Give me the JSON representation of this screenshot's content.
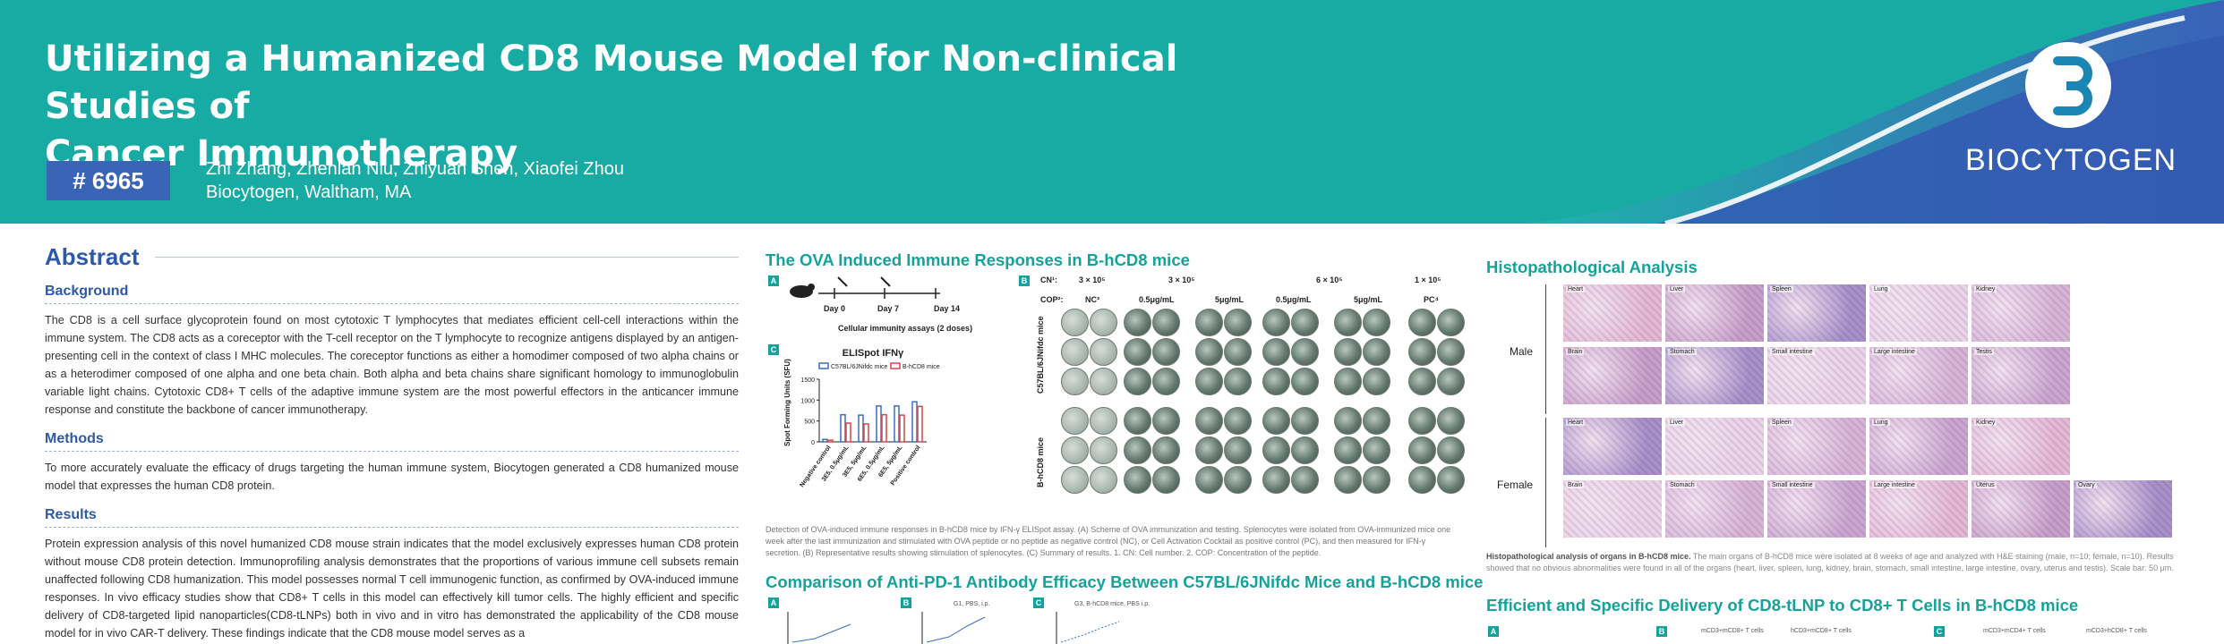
{
  "header": {
    "title_line1": "Utilizing a Humanized CD8 Mouse Model for Non-clinical Studies of",
    "title_line2": "Cancer Immunotherapy",
    "poster_number": "# 6965",
    "authors": "Zhi Zhang, Zhenlan Niu, Zhiyuan Shen, Xiaofei Zhou",
    "affiliation": "Biocytogen, Waltham, MA",
    "logo_text": "BIOCYTOGEN"
  },
  "abstract": {
    "heading": "Abstract",
    "background_heading": "Background",
    "background_text": "The CD8 is a cell surface glycoprotein found on most cytotoxic T lymphocytes that mediates efficient cell-cell interactions within the immune system. The CD8 acts as a coreceptor with the T-cell receptor on the T lymphocyte to recognize antigens displayed by an antigen-presenting cell in the context of class I MHC molecules. The coreceptor functions as either a homodimer composed of two alpha chains or as a heterodimer composed of one alpha and one beta chain. Both alpha and beta chains share significant homology to immunoglobulin variable light chains. Cytotoxic CD8+ T cells of the adaptive immune system are the most powerful effectors in the anticancer immune response and constitute the backbone of cancer immunotherapy.",
    "methods_heading": "Methods",
    "methods_text": "To more accurately evaluate the efficacy of drugs targeting the human immune system, Biocytogen generated a CD8 humanized mouse model that expresses the human CD8 protein.",
    "results_heading": "Results",
    "results_text": "Protein expression analysis of this novel humanized CD8 mouse strain indicates that the model exclusively expresses human CD8 protein without mouse CD8 protein detection. Immunoprofiling analysis demonstrates that the proportions of various immune cell subsets remain unaffected following CD8 humanization. This model possesses normal T cell immunogenic function, as confirmed by OVA-induced immune responses. In vivo efficacy studies show that CD8+ T cells in this model can effectively kill tumor cells. The highly efficient and specific delivery of CD8-targeted lipid nanoparticles(CD8-tLNPs) both in vivo and in vitro has demonstrated the applicability of the CD8 mouse model for in vivo CAR-T delivery. These findings indicate that the CD8 mouse model serves as a"
  },
  "ova": {
    "title": "The OVA Induced Immune Responses in B-hCD8 mice",
    "day0": "Day 0",
    "day7": "Day 7",
    "day14": "Day 14",
    "assay_label": "Cellular immunity assays (2 doses)",
    "cn_label": "CN¹:",
    "cop_label": "COP²:",
    "cn_values": [
      "3 × 10⁵",
      "3 × 10⁵",
      "6 × 10⁵",
      "1 × 10⁵"
    ],
    "cop_values": [
      "NC³",
      "0.5μg/mL",
      "5μg/mL",
      "0.5μg/mL",
      "5μg/mL",
      "PC⁴"
    ],
    "row1_label": "C57BL/6JNifdc mice",
    "row2_label": "B-hCD8 mice",
    "caption": "Detection of OVA-induced immune responses in B-hCD8 mice by IFN-γ ELISpot assay. (A) Scheme of OVA immunization and testing. Splenocytes were isolated from OVA-immunized mice one week after the last immunization and stimulated with OVA peptide or no peptide as negative control (NC), or Cell Activation Cocktail as positive control (PC), and then measured for IFN-γ secretion. (B) Representative results showing stimulation of splenocytes. (C) Summary of results. 1. CN: Cell number. 2. COP: Concentration of the peptide."
  },
  "chart_data": {
    "type": "bar",
    "title": "ELISpot IFNγ",
    "ylabel": "Spot Forming Units (SFU)",
    "ylim": [
      0,
      1500
    ],
    "yticks": [
      0,
      500,
      1000,
      1500
    ],
    "categories": [
      "Negative control",
      "3E5, 0.5μg/mL",
      "3E5, 5μg/mL",
      "6E5, 0.5μg/mL",
      "6E5, 5μg/mL",
      "Positive control"
    ],
    "series": [
      {
        "name": "C57BL/6JNifdc mice",
        "values": [
          60,
          650,
          640,
          860,
          860,
          960
        ]
      },
      {
        "name": "B-hCD8 mice",
        "values": [
          40,
          450,
          430,
          650,
          640,
          850
        ]
      }
    ],
    "legend": "top",
    "colors": {
      "series1": "#3a6fc4",
      "series2": "#d9474a"
    }
  },
  "pd1": {
    "title": "Comparison of Anti-PD-1 Antibody Efficacy Between C57BL/6JNifdc Mice and B-hCD8 mice",
    "panel_b_label": "G1, PBS, i.p.",
    "panel_c_label": "G3, B-hCD8 mice, PBS i.p."
  },
  "histo": {
    "title": "Histopathological Analysis",
    "male_label": "Male",
    "female_label": "Female",
    "male_row1": [
      "Heart",
      "Liver",
      "Spleen",
      "Lung",
      "Kidney"
    ],
    "male_row2": [
      "Brain",
      "Stomach",
      "Small intestine",
      "Large intestine",
      "Testis"
    ],
    "female_row1": [
      "Heart",
      "Liver",
      "Spleen",
      "Lung",
      "Kidney"
    ],
    "female_row2": [
      "Brain",
      "Stomach",
      "Small intestine",
      "Large intestine",
      "Uterus",
      "Ovary"
    ],
    "caption_bold": "Histopathological analysis of organs in B-hCD8 mice.",
    "caption": " The main organs of B-hCD8 mice were isolated at 8 weeks of age and analyzed with H&E staining (male, n=10; female, n=10). Results showed that no obvious abnormalities were found in all of the organs (heart, liver, spleen, lung, kidney, brain, stomach, small intestine, large intestine, ovary, uterus and testis). Scale bar: 50 μm."
  },
  "delivery": {
    "title": "Efficient and Specific Delivery of CD8-tLNP to CD8+ T Cells in B-hCD8 mice",
    "panel_b_label": "mCD3+mCD8+ T cells",
    "panel_b2_label": "hCD3+mCD8+ T cells",
    "panel_c_label": "mCD3+mCD4+ T cells",
    "panel_c2_label": "mCD3+hCD8+ T cells"
  },
  "colors": {
    "teal": "#17aba4",
    "blue": "#2d59a8",
    "section_green": "#14a39b"
  }
}
